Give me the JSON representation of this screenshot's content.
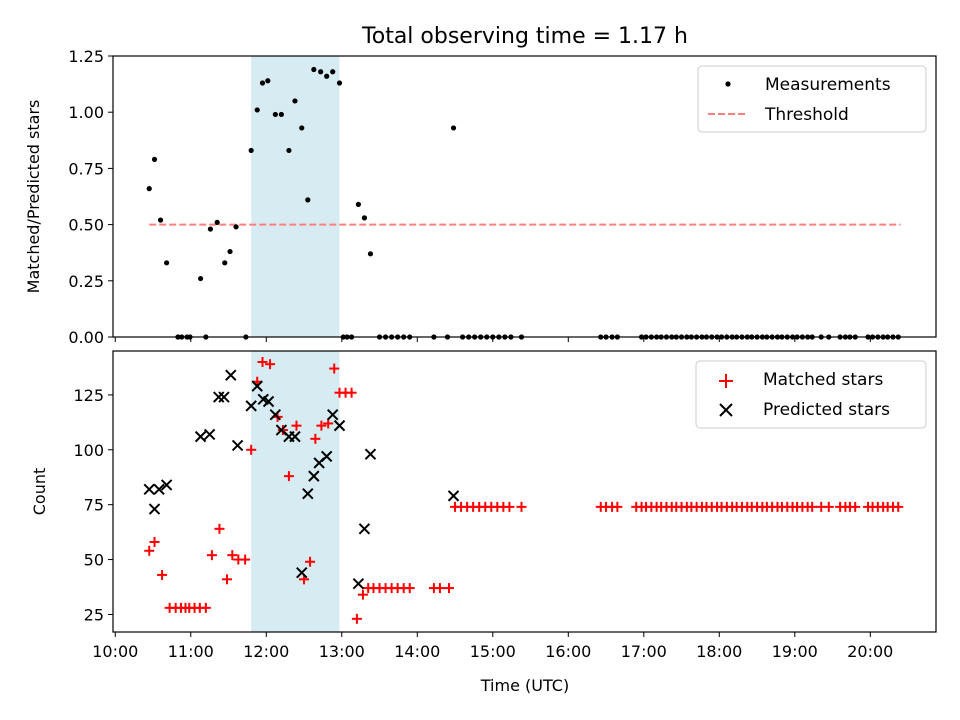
{
  "figure": {
    "title": "Total observing time = 1.17 h"
  },
  "colors": {
    "measurement": "#000000",
    "threshold": "#ff7f7f",
    "matched": "#ff0000",
    "predicted": "#000000",
    "highlight": "#add8e6"
  },
  "chart_data": [
    {
      "type": "scatter",
      "panel": "top",
      "title": "Total observing time = 1.17 h",
      "xlabel": "",
      "ylabel": "Matched/Predicted stars",
      "x_unit": "hour (UTC)",
      "xlim": [
        9.97,
        20.87
      ],
      "ylim": [
        0,
        1.25
      ],
      "yticks": [
        0.0,
        0.25,
        0.5,
        0.75,
        1.0,
        1.25
      ],
      "ytick_labels": [
        "0.00",
        "0.25",
        "0.50",
        "0.75",
        "1.00",
        "1.25"
      ],
      "highlight_span": {
        "x": [
          11.8,
          12.97
        ]
      },
      "legend": {
        "position": "top-right",
        "entries": [
          "Measurements",
          "Threshold"
        ]
      },
      "threshold": {
        "name": "Threshold",
        "y": 0.5,
        "x": [
          10.45,
          20.4
        ]
      },
      "series": [
        {
          "name": "Measurements",
          "points": [
            [
              10.45,
              0.66
            ],
            [
              10.52,
              0.79
            ],
            [
              10.6,
              0.52
            ],
            [
              10.68,
              0.33
            ],
            [
              10.83,
              0
            ],
            [
              10.88,
              0
            ],
            [
              10.95,
              0
            ],
            [
              10.99,
              0
            ],
            [
              11.13,
              0.26
            ],
            [
              11.2,
              0
            ],
            [
              11.26,
              0.48
            ],
            [
              11.35,
              0.51
            ],
            [
              11.45,
              0.33
            ],
            [
              11.52,
              0.38
            ],
            [
              11.6,
              0.49
            ],
            [
              11.73,
              0
            ],
            [
              11.8,
              0.83
            ],
            [
              11.88,
              1.01
            ],
            [
              11.95,
              1.13
            ],
            [
              12.02,
              1.14
            ],
            [
              12.12,
              0.99
            ],
            [
              12.2,
              0.99
            ],
            [
              12.3,
              0.83
            ],
            [
              12.38,
              1.05
            ],
            [
              12.47,
              0.93
            ],
            [
              12.55,
              0.61
            ],
            [
              12.63,
              1.19
            ],
            [
              12.72,
              1.18
            ],
            [
              12.8,
              1.16
            ],
            [
              12.88,
              1.18
            ],
            [
              12.97,
              1.13
            ],
            [
              13.02,
              0
            ],
            [
              13.07,
              0
            ],
            [
              13.13,
              0
            ],
            [
              13.22,
              0.59
            ],
            [
              13.3,
              0.53
            ],
            [
              13.38,
              0.37
            ],
            [
              13.5,
              0
            ],
            [
              13.58,
              0
            ],
            [
              13.66,
              0
            ],
            [
              13.74,
              0
            ],
            [
              13.82,
              0
            ],
            [
              13.9,
              0
            ],
            [
              14.22,
              0
            ],
            [
              14.4,
              0
            ],
            [
              14.48,
              0.93
            ],
            [
              14.6,
              0
            ],
            [
              14.68,
              0
            ],
            [
              14.76,
              0
            ],
            [
              14.84,
              0
            ],
            [
              14.92,
              0
            ],
            [
              15.0,
              0
            ],
            [
              15.08,
              0
            ],
            [
              15.16,
              0
            ],
            [
              15.24,
              0
            ],
            [
              15.38,
              0
            ],
            [
              16.43,
              0
            ],
            [
              16.5,
              0
            ],
            [
              16.58,
              0
            ],
            [
              16.65,
              0
            ],
            [
              16.97,
              0
            ],
            [
              17.03,
              0
            ],
            [
              17.1,
              0
            ],
            [
              17.17,
              0
            ],
            [
              17.23,
              0
            ],
            [
              17.3,
              0
            ],
            [
              17.37,
              0
            ],
            [
              17.43,
              0
            ],
            [
              17.5,
              0
            ],
            [
              17.57,
              0
            ],
            [
              17.63,
              0
            ],
            [
              17.7,
              0
            ],
            [
              17.77,
              0
            ],
            [
              17.83,
              0
            ],
            [
              17.9,
              0
            ],
            [
              17.97,
              0
            ],
            [
              18.03,
              0
            ],
            [
              18.1,
              0
            ],
            [
              18.17,
              0
            ],
            [
              18.23,
              0
            ],
            [
              18.3,
              0
            ],
            [
              18.37,
              0
            ],
            [
              18.43,
              0
            ],
            [
              18.5,
              0
            ],
            [
              18.57,
              0
            ],
            [
              18.63,
              0
            ],
            [
              18.7,
              0
            ],
            [
              18.77,
              0
            ],
            [
              18.83,
              0
            ],
            [
              18.9,
              0
            ],
            [
              18.97,
              0
            ],
            [
              19.03,
              0
            ],
            [
              19.1,
              0
            ],
            [
              19.17,
              0
            ],
            [
              19.23,
              0
            ],
            [
              19.35,
              0
            ],
            [
              19.45,
              0
            ],
            [
              19.6,
              0
            ],
            [
              19.67,
              0
            ],
            [
              19.73,
              0
            ],
            [
              19.8,
              0
            ],
            [
              19.97,
              0
            ],
            [
              20.03,
              0
            ],
            [
              20.1,
              0
            ],
            [
              20.17,
              0
            ],
            [
              20.23,
              0
            ],
            [
              20.3,
              0
            ],
            [
              20.37,
              0
            ]
          ]
        }
      ]
    },
    {
      "type": "scatter",
      "panel": "bottom",
      "xlabel": "Time (UTC)",
      "ylabel": "Count",
      "x_unit": "hour (UTC)",
      "xlim": [
        9.97,
        20.87
      ],
      "ylim": [
        17,
        145
      ],
      "xticks": [
        10,
        11,
        12,
        13,
        14,
        15,
        16,
        17,
        18,
        19,
        20
      ],
      "xtick_labels": [
        "10:00",
        "11:00",
        "12:00",
        "13:00",
        "14:00",
        "15:00",
        "16:00",
        "17:00",
        "18:00",
        "19:00",
        "20:00"
      ],
      "yticks": [
        25,
        50,
        75,
        100,
        125
      ],
      "ytick_labels": [
        "25",
        "50",
        "75",
        "100",
        "125"
      ],
      "highlight_span": {
        "x": [
          11.8,
          12.97
        ]
      },
      "legend": {
        "position": "top-right",
        "entries": [
          "Matched stars",
          "Predicted stars"
        ]
      },
      "series": [
        {
          "name": "Matched stars",
          "marker": "plus",
          "points": [
            [
              10.45,
              54
            ],
            [
              10.52,
              58
            ],
            [
              10.62,
              43
            ],
            [
              10.72,
              28
            ],
            [
              10.8,
              28
            ],
            [
              10.87,
              28
            ],
            [
              10.93,
              28
            ],
            [
              10.98,
              28
            ],
            [
              11.05,
              28
            ],
            [
              11.12,
              28
            ],
            [
              11.2,
              28
            ],
            [
              11.28,
              52
            ],
            [
              11.38,
              64
            ],
            [
              11.48,
              41
            ],
            [
              11.55,
              52
            ],
            [
              11.63,
              50
            ],
            [
              11.72,
              50
            ],
            [
              11.8,
              100
            ],
            [
              11.88,
              131
            ],
            [
              11.95,
              140
            ],
            [
              12.05,
              139
            ],
            [
              12.15,
              115
            ],
            [
              12.22,
              109
            ],
            [
              12.3,
              88
            ],
            [
              12.4,
              111
            ],
            [
              12.5,
              41
            ],
            [
              12.58,
              49
            ],
            [
              12.65,
              105
            ],
            [
              12.73,
              111
            ],
            [
              12.82,
              112
            ],
            [
              12.9,
              137
            ],
            [
              12.97,
              126
            ],
            [
              13.05,
              126
            ],
            [
              13.13,
              126
            ],
            [
              13.2,
              23
            ],
            [
              13.28,
              34
            ],
            [
              13.35,
              37
            ],
            [
              13.42,
              37
            ],
            [
              13.5,
              37
            ],
            [
              13.58,
              37
            ],
            [
              13.66,
              37
            ],
            [
              13.74,
              37
            ],
            [
              13.82,
              37
            ],
            [
              13.9,
              37
            ],
            [
              14.22,
              37
            ],
            [
              14.3,
              37
            ],
            [
              14.42,
              37
            ],
            [
              14.5,
              74
            ],
            [
              14.58,
              74
            ],
            [
              14.66,
              74
            ],
            [
              14.74,
              74
            ],
            [
              14.82,
              74
            ],
            [
              14.9,
              74
            ],
            [
              14.98,
              74
            ],
            [
              15.06,
              74
            ],
            [
              15.14,
              74
            ],
            [
              15.22,
              74
            ],
            [
              15.38,
              74
            ],
            [
              16.43,
              74
            ],
            [
              16.5,
              74
            ],
            [
              16.58,
              74
            ],
            [
              16.65,
              74
            ],
            [
              16.9,
              74
            ],
            [
              16.97,
              74
            ],
            [
              17.03,
              74
            ],
            [
              17.1,
              74
            ],
            [
              17.17,
              74
            ],
            [
              17.23,
              74
            ],
            [
              17.3,
              74
            ],
            [
              17.37,
              74
            ],
            [
              17.43,
              74
            ],
            [
              17.5,
              74
            ],
            [
              17.57,
              74
            ],
            [
              17.63,
              74
            ],
            [
              17.7,
              74
            ],
            [
              17.77,
              74
            ],
            [
              17.83,
              74
            ],
            [
              17.9,
              74
            ],
            [
              17.97,
              74
            ],
            [
              18.03,
              74
            ],
            [
              18.1,
              74
            ],
            [
              18.17,
              74
            ],
            [
              18.23,
              74
            ],
            [
              18.3,
              74
            ],
            [
              18.37,
              74
            ],
            [
              18.43,
              74
            ],
            [
              18.5,
              74
            ],
            [
              18.57,
              74
            ],
            [
              18.63,
              74
            ],
            [
              18.7,
              74
            ],
            [
              18.77,
              74
            ],
            [
              18.83,
              74
            ],
            [
              18.9,
              74
            ],
            [
              18.97,
              74
            ],
            [
              19.03,
              74
            ],
            [
              19.1,
              74
            ],
            [
              19.17,
              74
            ],
            [
              19.23,
              74
            ],
            [
              19.35,
              74
            ],
            [
              19.45,
              74
            ],
            [
              19.6,
              74
            ],
            [
              19.67,
              74
            ],
            [
              19.73,
              74
            ],
            [
              19.8,
              74
            ],
            [
              19.97,
              74
            ],
            [
              20.03,
              74
            ],
            [
              20.1,
              74
            ],
            [
              20.17,
              74
            ],
            [
              20.23,
              74
            ],
            [
              20.3,
              74
            ],
            [
              20.37,
              74
            ]
          ]
        },
        {
          "name": "Predicted stars",
          "marker": "x",
          "points": [
            [
              10.45,
              82
            ],
            [
              10.52,
              73
            ],
            [
              10.58,
              82
            ],
            [
              10.68,
              84
            ],
            [
              11.13,
              106
            ],
            [
              11.25,
              107
            ],
            [
              11.37,
              124
            ],
            [
              11.44,
              124
            ],
            [
              11.53,
              134
            ],
            [
              11.62,
              102
            ],
            [
              11.8,
              120
            ],
            [
              11.88,
              129
            ],
            [
              11.96,
              123
            ],
            [
              12.03,
              122
            ],
            [
              12.12,
              116
            ],
            [
              12.2,
              109
            ],
            [
              12.3,
              106
            ],
            [
              12.38,
              106
            ],
            [
              12.47,
              44
            ],
            [
              12.55,
              80
            ],
            [
              12.63,
              88
            ],
            [
              12.7,
              94
            ],
            [
              12.8,
              97
            ],
            [
              12.88,
              116
            ],
            [
              12.97,
              111
            ],
            [
              13.22,
              39
            ],
            [
              13.3,
              64
            ],
            [
              13.38,
              98
            ],
            [
              14.48,
              79
            ]
          ]
        }
      ]
    }
  ]
}
